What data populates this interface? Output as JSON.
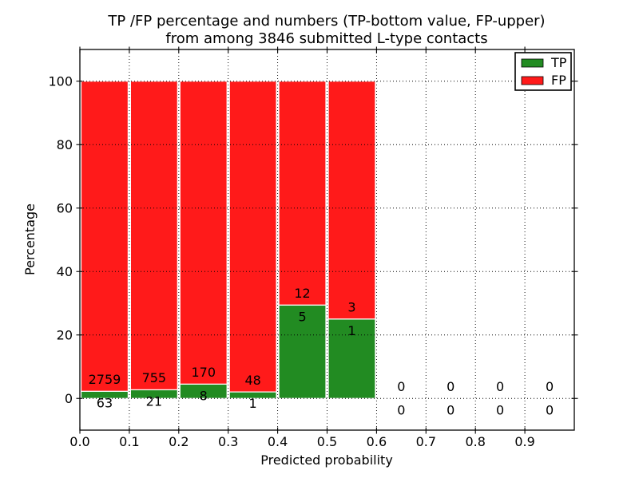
{
  "chart_data": {
    "type": "bar",
    "stacked": true,
    "title_line1": "TP /FP percentage and numbers (TP-bottom value, FP-upper)",
    "title_line2": "from among 3846 submitted L-type contacts",
    "total_submitted": 3846,
    "xlabel": "Predicted probability",
    "ylabel": "Percentage",
    "xlim": [
      0.0,
      1.0
    ],
    "ylim": [
      -10,
      110
    ],
    "grid": true,
    "legend_position": "upper right",
    "legend": [
      {
        "label": "TP",
        "color": "#228b22"
      },
      {
        "label": "FP",
        "color": "#ff1a1a"
      }
    ],
    "x_ticks": [
      {
        "v": 0.0,
        "label": "0.0"
      },
      {
        "v": 0.1,
        "label": "0.1"
      },
      {
        "v": 0.2,
        "label": "0.2"
      },
      {
        "v": 0.3,
        "label": "0.3"
      },
      {
        "v": 0.4,
        "label": "0.4"
      },
      {
        "v": 0.5,
        "label": "0.5"
      },
      {
        "v": 0.6,
        "label": "0.6"
      },
      {
        "v": 0.7,
        "label": "0.7"
      },
      {
        "v": 0.8,
        "label": "0.8"
      },
      {
        "v": 0.9,
        "label": "0.9"
      }
    ],
    "y_ticks": [
      {
        "v": 0,
        "label": "0"
      },
      {
        "v": 20,
        "label": "20"
      },
      {
        "v": 40,
        "label": "40"
      },
      {
        "v": 60,
        "label": "60"
      },
      {
        "v": 80,
        "label": "80"
      },
      {
        "v": 100,
        "label": "100"
      }
    ],
    "bins": [
      {
        "range": [
          0.0,
          0.1
        ],
        "tp": 63,
        "fp": 2759,
        "tp_pct": 2.23,
        "fp_pct": 97.77
      },
      {
        "range": [
          0.1,
          0.2
        ],
        "tp": 21,
        "fp": 755,
        "tp_pct": 2.71,
        "fp_pct": 97.29
      },
      {
        "range": [
          0.2,
          0.3
        ],
        "tp": 8,
        "fp": 170,
        "tp_pct": 4.49,
        "fp_pct": 95.51
      },
      {
        "range": [
          0.3,
          0.4
        ],
        "tp": 1,
        "fp": 48,
        "tp_pct": 2.04,
        "fp_pct": 97.96
      },
      {
        "range": [
          0.4,
          0.5
        ],
        "tp": 5,
        "fp": 12,
        "tp_pct": 29.41,
        "fp_pct": 70.59
      },
      {
        "range": [
          0.5,
          0.6
        ],
        "tp": 1,
        "fp": 3,
        "tp_pct": 25.0,
        "fp_pct": 75.0
      },
      {
        "range": [
          0.6,
          0.7
        ],
        "tp": 0,
        "fp": 0,
        "tp_pct": 0,
        "fp_pct": 0
      },
      {
        "range": [
          0.7,
          0.8
        ],
        "tp": 0,
        "fp": 0,
        "tp_pct": 0,
        "fp_pct": 0
      },
      {
        "range": [
          0.8,
          0.9
        ],
        "tp": 0,
        "fp": 0,
        "tp_pct": 0,
        "fp_pct": 0
      },
      {
        "range": [
          0.9,
          1.0
        ],
        "tp": 0,
        "fp": 0,
        "tp_pct": 0,
        "fp_pct": 0
      }
    ],
    "annotation_color": "#000000",
    "bar_edge_color": "#ffffff",
    "grid_color": "#000000"
  }
}
